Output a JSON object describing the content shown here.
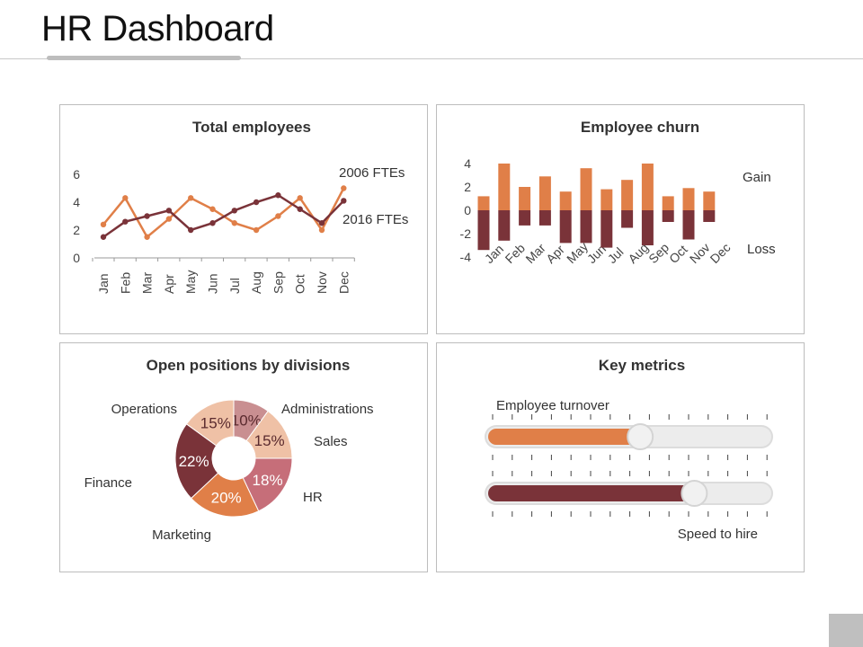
{
  "page": {
    "title": "HR Dashboard"
  },
  "colors": {
    "orange": "#e07f48",
    "maroon": "#7a3339",
    "peach": "#efc1a6",
    "mauve": "#c98f91",
    "rose": "#c66e79",
    "slider_track": "#ececec",
    "axis": "#999999"
  },
  "chart_data": [
    {
      "id": "total-employees",
      "type": "line",
      "title": "Total employees",
      "categories": [
        "Jan",
        "Feb",
        "Mar",
        "Apr",
        "May",
        "Jun",
        "Jul",
        "Aug",
        "Sep",
        "Oct",
        "Nov",
        "Dec"
      ],
      "ylim": [
        0,
        6
      ],
      "yticks": [
        0,
        2,
        4,
        6
      ],
      "series": [
        {
          "name": "2006 FTEs",
          "color": "#e07f48",
          "values": [
            2.4,
            4.3,
            1.5,
            2.8,
            4.3,
            3.5,
            2.5,
            2.0,
            3.0,
            4.3,
            2.0,
            5.0
          ]
        },
        {
          "name": "2016 FTEs",
          "color": "#7a3339",
          "values": [
            1.5,
            2.6,
            3.0,
            3.4,
            2.0,
            2.5,
            3.4,
            4.0,
            4.5,
            3.5,
            2.5,
            4.1
          ]
        }
      ]
    },
    {
      "id": "employee-churn",
      "type": "bar",
      "title": "Employee churn",
      "categories": [
        "Jan",
        "Feb",
        "Mar",
        "Apr",
        "May",
        "Jun",
        "Jul",
        "Aug",
        "Sep",
        "Oct",
        "Nov",
        "Dec"
      ],
      "ylim": [
        -4,
        4
      ],
      "yticks": [
        4,
        2,
        0,
        -2,
        -4
      ],
      "series": [
        {
          "name": "Gain",
          "color": "#e07f48",
          "values": [
            1.2,
            4.0,
            2.0,
            2.9,
            1.6,
            3.6,
            1.8,
            2.6,
            4.0,
            1.2,
            1.9,
            1.6
          ]
        },
        {
          "name": "Loss",
          "color": "#7a3339",
          "values": [
            -3.4,
            -2.6,
            -1.3,
            -1.3,
            -2.8,
            -2.8,
            -3.2,
            -1.5,
            -3.0,
            -1.0,
            -2.5,
            -1.0
          ]
        }
      ]
    },
    {
      "id": "open-positions",
      "type": "pie",
      "title": "Open positions by divisions",
      "slices": [
        {
          "label": "Administrations",
          "value": 10,
          "color": "#c98f91"
        },
        {
          "label": "Sales",
          "value": 15,
          "color": "#efc1a6"
        },
        {
          "label": "HR",
          "value": 18,
          "color": "#c66e79"
        },
        {
          "label": "Marketing",
          "value": 20,
          "color": "#e07f48"
        },
        {
          "label": "Finance",
          "value": 22,
          "color": "#7a3339"
        },
        {
          "label": "Operations",
          "value": 15,
          "color": "#efc1a6"
        }
      ]
    }
  ],
  "key_metrics": {
    "title": "Key metrics",
    "metrics": [
      {
        "name": "Employee turnover",
        "value": 0.54,
        "color": "#e07f48"
      },
      {
        "name": "Speed to hire",
        "value": 0.73,
        "color": "#7a3339"
      }
    ]
  }
}
